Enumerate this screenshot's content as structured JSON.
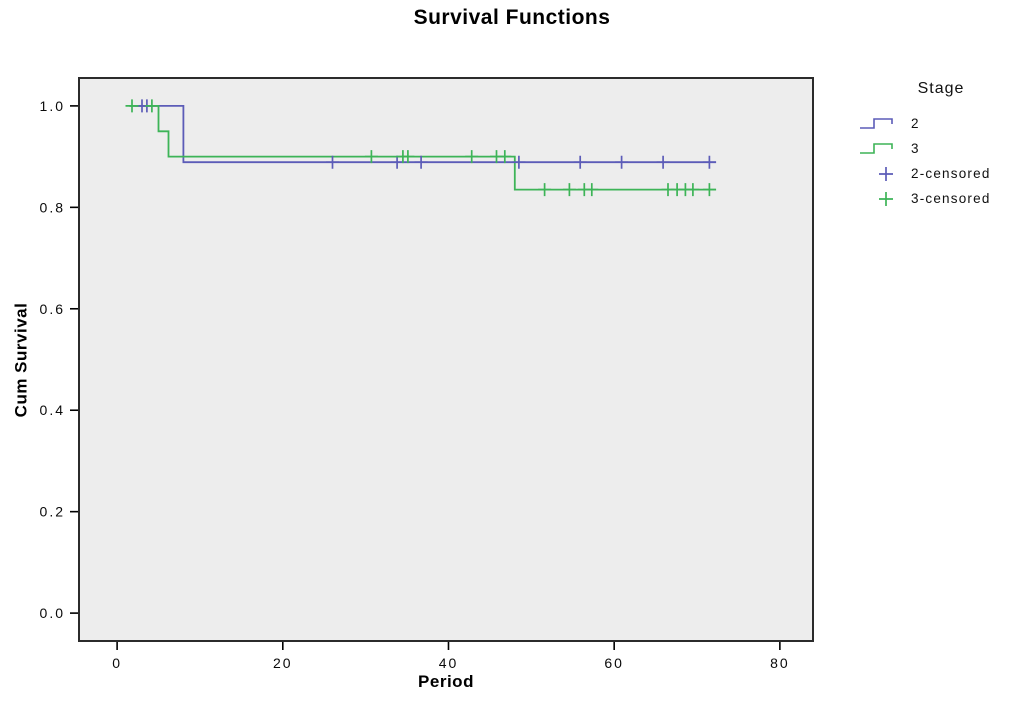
{
  "title": "Survival Functions",
  "axes": {
    "xlabel": "Period",
    "ylabel": "Cum Survival"
  },
  "colors": {
    "plot_bg": "#ededed",
    "frame": "#2b2b2b",
    "tick": "#000000",
    "series": {
      "2": "#5c5cb8",
      "3": "#3db457"
    }
  },
  "legend": {
    "title": "Stage",
    "items": [
      {
        "label": "2",
        "glyph": "step",
        "series": "2"
      },
      {
        "label": "3",
        "glyph": "step",
        "series": "3"
      },
      {
        "label": "2-censored",
        "glyph": "plus",
        "series": "2"
      },
      {
        "label": "3-censored",
        "glyph": "plus",
        "series": "3"
      }
    ]
  },
  "chart_data": {
    "type": "line",
    "subtype": "kaplan-meier-step",
    "title": "Survival Functions",
    "xlabel": "Period",
    "ylabel": "Cum Survival",
    "xlim": [
      -4.6,
      84
    ],
    "ylim": [
      -0.055,
      1.055
    ],
    "xticks": [
      0,
      20,
      40,
      60,
      80
    ],
    "xtick_labels": [
      "0",
      "20",
      "40",
      "60",
      "80"
    ],
    "yticks": [
      0.0,
      0.2,
      0.4,
      0.6,
      0.8,
      1.0
    ],
    "ytick_labels": [
      "0.0",
      "0.2",
      "0.4",
      "0.6",
      "0.8",
      "1.0"
    ],
    "grid": false,
    "legend_position": "right",
    "series": [
      {
        "name": "2",
        "color": "#5c5cb8",
        "points": [
          [
            1.5,
            1.0
          ],
          [
            8,
            1.0
          ],
          [
            8,
            0.889
          ],
          [
            72.3,
            0.889
          ]
        ],
        "censored": [
          [
            3.0,
            1.0
          ],
          [
            3.6,
            1.0
          ],
          [
            26.0,
            0.889
          ],
          [
            33.8,
            0.889
          ],
          [
            36.7,
            0.889
          ],
          [
            48.5,
            0.889
          ],
          [
            55.9,
            0.889
          ],
          [
            60.9,
            0.889
          ],
          [
            65.9,
            0.889
          ],
          [
            71.5,
            0.889
          ]
        ]
      },
      {
        "name": "3",
        "color": "#3db457",
        "points": [
          [
            1.5,
            1.0
          ],
          [
            5,
            1.0
          ],
          [
            5,
            0.95
          ],
          [
            6.2,
            0.95
          ],
          [
            6.2,
            0.9
          ],
          [
            48,
            0.9
          ],
          [
            48,
            0.835
          ],
          [
            72.3,
            0.835
          ]
        ],
        "censored": [
          [
            1.8,
            1.0
          ],
          [
            4.2,
            1.0
          ],
          [
            30.7,
            0.9
          ],
          [
            34.5,
            0.9
          ],
          [
            35.1,
            0.9
          ],
          [
            42.8,
            0.9
          ],
          [
            45.8,
            0.9
          ],
          [
            46.8,
            0.9
          ],
          [
            51.6,
            0.835
          ],
          [
            54.6,
            0.835
          ],
          [
            56.4,
            0.835
          ],
          [
            57.3,
            0.835
          ],
          [
            66.5,
            0.835
          ],
          [
            67.6,
            0.835
          ],
          [
            68.6,
            0.835
          ],
          [
            69.5,
            0.835
          ],
          [
            71.5,
            0.835
          ]
        ]
      }
    ]
  }
}
